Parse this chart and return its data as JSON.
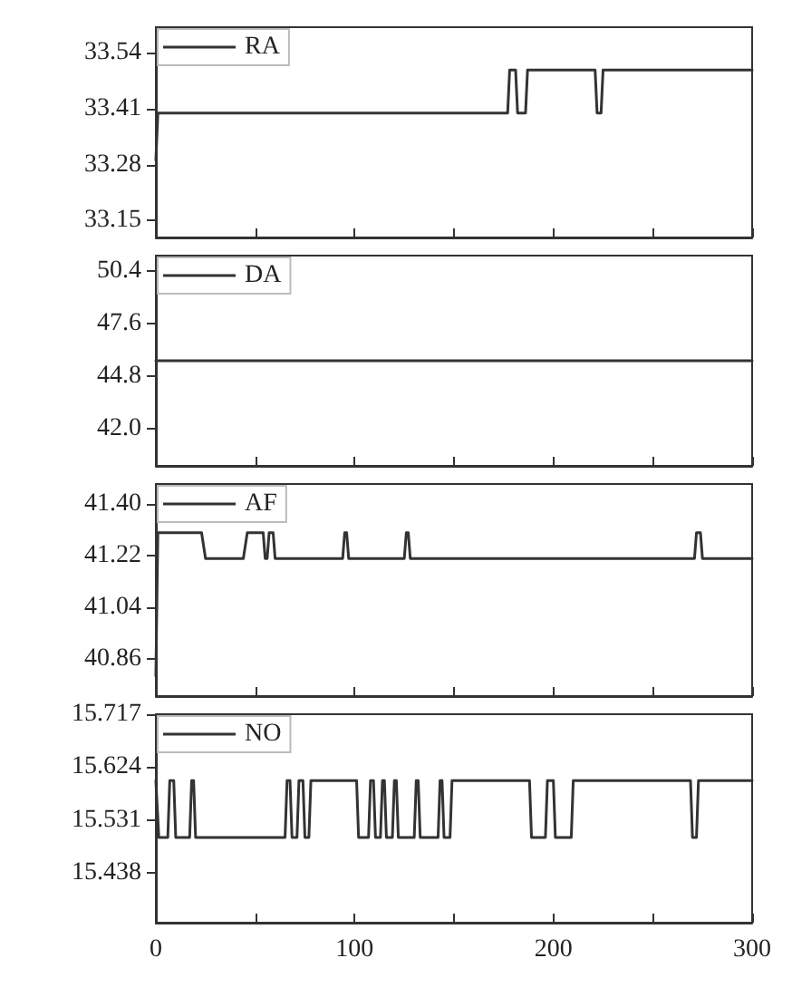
{
  "chart_data": [
    {
      "type": "line",
      "legend": "top left",
      "tick_labels": "y",
      "line_style": "solid",
      "grid": false,
      "xlim": [
        0,
        300
      ],
      "xticks": [
        {
          "value": 0,
          "label": null
        },
        {
          "value": 50,
          "label": null
        },
        {
          "value": 100,
          "label": null
        },
        {
          "value": 150,
          "label": null
        },
        {
          "value": 200,
          "label": null
        },
        {
          "value": 250,
          "label": null
        },
        {
          "value": 300,
          "label": null
        }
      ],
      "ylim": [
        33.11,
        33.6
      ],
      "yticks": [
        33.15,
        33.28,
        33.41,
        33.54
      ],
      "series": [
        {
          "name": "RA",
          "color": "#333333",
          "x": [
            0,
            1,
            177,
            178,
            181,
            182,
            186,
            187,
            221,
            222,
            224,
            225,
            300
          ],
          "values": [
            33.29,
            33.4,
            33.4,
            33.5,
            33.5,
            33.4,
            33.4,
            33.5,
            33.5,
            33.4,
            33.4,
            33.5,
            33.5
          ]
        }
      ]
    },
    {
      "type": "line",
      "legend": "top left",
      "tick_labels": "y",
      "line_style": "solid",
      "grid": false,
      "xlim": [
        0,
        300
      ],
      "xticks": [
        {
          "value": 0,
          "label": null
        },
        {
          "value": 50,
          "label": null
        },
        {
          "value": 100,
          "label": null
        },
        {
          "value": 150,
          "label": null
        },
        {
          "value": 200,
          "label": null
        },
        {
          "value": 250,
          "label": null
        },
        {
          "value": 300,
          "label": null
        }
      ],
      "ylim": [
        40.0,
        51.2
      ],
      "yticks": [
        {
          "value": 42.0,
          "label": "42.0"
        },
        {
          "value": 44.8,
          "label": "44.8"
        },
        {
          "value": 47.6,
          "label": "47.6"
        },
        {
          "value": 50.4,
          "label": "50.4"
        }
      ],
      "series": [
        {
          "name": "DA",
          "color": "#333333",
          "x": [
            0,
            300
          ],
          "values": [
            45.6,
            45.6
          ]
        }
      ]
    },
    {
      "type": "line",
      "legend": "top left",
      "tick_labels": "y",
      "line_style": "solid",
      "grid": false,
      "xlim": [
        0,
        300
      ],
      "xticks": [
        {
          "value": 0,
          "label": null
        },
        {
          "value": 50,
          "label": null
        },
        {
          "value": 100,
          "label": null
        },
        {
          "value": 150,
          "label": null
        },
        {
          "value": 200,
          "label": null
        },
        {
          "value": 250,
          "label": null
        },
        {
          "value": 300,
          "label": null
        }
      ],
      "ylim": [
        40.73,
        41.47
      ],
      "yticks": [
        {
          "value": 40.86,
          "label": "40.86"
        },
        {
          "value": 41.04,
          "label": "41.04"
        },
        {
          "value": 41.22,
          "label": "41.22"
        },
        {
          "value": 41.4,
          "label": "41.40"
        }
      ],
      "series": [
        {
          "name": "AF",
          "color": "#333333",
          "x": [
            0,
            1,
            23,
            25,
            44,
            46,
            54,
            55,
            56,
            57,
            59,
            60,
            94,
            95,
            96,
            97,
            125,
            126,
            127,
            128,
            271,
            272,
            274,
            275,
            300
          ],
          "values": [
            40.8,
            41.3,
            41.3,
            41.21,
            41.21,
            41.3,
            41.3,
            41.21,
            41.21,
            41.3,
            41.3,
            41.21,
            41.21,
            41.3,
            41.3,
            41.21,
            41.21,
            41.3,
            41.3,
            41.21,
            41.21,
            41.3,
            41.3,
            41.21,
            41.21
          ]
        }
      ]
    },
    {
      "type": "line",
      "legend": "top left",
      "line_style": "solid",
      "grid": false,
      "xlim": [
        0,
        300
      ],
      "xticks": [
        0,
        {
          "value": 50,
          "label": null
        },
        100,
        {
          "value": 150,
          "label": null
        },
        200,
        {
          "value": 250,
          "label": null
        },
        300
      ],
      "ylim": [
        15.35,
        15.717
      ],
      "yticks": [
        15.438,
        15.531,
        15.624,
        15.717
      ],
      "series": [
        {
          "name": "NO",
          "color": "#333333",
          "x": [
            0,
            1.5,
            6,
            7,
            9,
            10,
            17,
            18,
            19,
            20,
            65,
            66,
            67.5,
            68.5,
            71,
            72,
            74,
            75,
            77,
            78,
            101,
            102,
            107,
            108,
            109.5,
            110.5,
            113,
            114,
            115,
            116,
            119,
            120,
            121,
            122,
            130,
            131,
            132,
            133,
            142,
            143,
            144,
            145,
            148,
            149,
            188,
            189,
            196,
            197,
            200,
            201,
            209,
            210,
            269,
            270,
            272,
            273,
            300
          ],
          "values": [
            15.6,
            15.5,
            15.5,
            15.6,
            15.6,
            15.5,
            15.5,
            15.6,
            15.6,
            15.5,
            15.5,
            15.6,
            15.6,
            15.5,
            15.5,
            15.6,
            15.6,
            15.5,
            15.5,
            15.6,
            15.6,
            15.5,
            15.5,
            15.6,
            15.6,
            15.5,
            15.5,
            15.6,
            15.6,
            15.5,
            15.5,
            15.6,
            15.6,
            15.5,
            15.5,
            15.6,
            15.6,
            15.5,
            15.5,
            15.6,
            15.6,
            15.5,
            15.5,
            15.6,
            15.6,
            15.5,
            15.5,
            15.6,
            15.6,
            15.5,
            15.5,
            15.6,
            15.6,
            15.5,
            15.5,
            15.6,
            15.6
          ]
        }
      ]
    }
  ]
}
